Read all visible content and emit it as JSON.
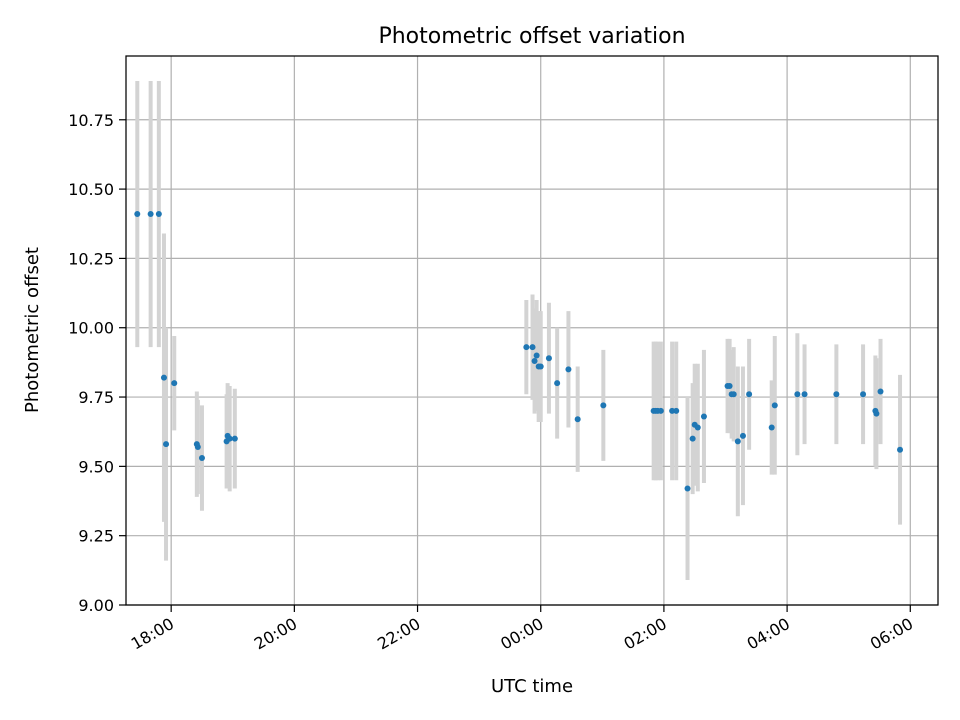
{
  "chart_data": {
    "type": "scatter",
    "title": "Photometric offset variation",
    "xlabel": "UTC time",
    "ylabel": "Photometric offset",
    "x_is_time": true,
    "x_tick_labels": [
      "18:00",
      "20:00",
      "22:00",
      "00:00",
      "02:00",
      "04:00",
      "06:00"
    ],
    "y_tick_labels": [
      "9.00",
      "9.25",
      "9.50",
      "9.75",
      "10.00",
      "10.25",
      "10.50",
      "10.75"
    ],
    "xlim": [
      "17:16",
      "06:27"
    ],
    "ylim": [
      9.0,
      10.98
    ],
    "grid": true,
    "legend": "none",
    "colors": {
      "points": "#1f77b4",
      "error_bars": "#d3d3d3",
      "grid": "#b0b0b0",
      "axes": "#000000"
    },
    "series": [
      {
        "x": [
          "17:27",
          "17:40",
          "17:48",
          "17:53",
          "17:55",
          "18:03",
          "18:25",
          "18:26",
          "18:30",
          "18:54",
          "18:55",
          "18:57",
          "19:02",
          "23:46",
          "23:52",
          "23:54",
          "23:56",
          "23:58",
          "00:00",
          "00:08",
          "00:16",
          "00:27",
          "00:36",
          "01:01",
          "01:50",
          "01:52",
          "01:54",
          "01:57",
          "02:08",
          "02:12",
          "02:23",
          "02:28",
          "02:30",
          "02:33",
          "02:39",
          "03:02",
          "03:04",
          "03:06",
          "03:08",
          "03:12",
          "03:17",
          "03:23",
          "03:45",
          "03:48",
          "04:10",
          "04:17",
          "04:48",
          "05:14",
          "05:26",
          "05:27",
          "05:31",
          "05:50"
        ],
        "y": [
          10.41,
          10.41,
          10.41,
          9.82,
          9.58,
          9.8,
          9.58,
          9.57,
          9.53,
          9.59,
          9.61,
          9.6,
          9.6,
          9.93,
          9.93,
          9.88,
          9.9,
          9.86,
          9.86,
          9.89,
          9.8,
          9.85,
          9.67,
          9.72,
          9.7,
          9.7,
          9.7,
          9.7,
          9.7,
          9.7,
          9.42,
          9.6,
          9.65,
          9.64,
          9.68,
          9.79,
          9.79,
          9.76,
          9.76,
          9.59,
          9.61,
          9.76,
          9.64,
          9.72,
          9.76,
          9.76,
          9.76,
          9.76,
          9.7,
          9.69,
          9.77,
          9.56
        ],
        "yerr": [
          0.48,
          0.48,
          0.48,
          0.52,
          0.42,
          0.17,
          0.19,
          0.17,
          0.19,
          0.17,
          0.19,
          0.19,
          0.18,
          0.17,
          0.19,
          0.19,
          0.2,
          0.2,
          0.2,
          0.2,
          0.2,
          0.21,
          0.19,
          0.2,
          0.25,
          0.25,
          0.25,
          0.25,
          0.25,
          0.25,
          0.33,
          0.2,
          0.22,
          0.23,
          0.24,
          0.17,
          0.17,
          0.16,
          0.17,
          0.27,
          0.25,
          0.2,
          0.17,
          0.25,
          0.22,
          0.18,
          0.18,
          0.18,
          0.2,
          0.2,
          0.19,
          0.27
        ]
      }
    ]
  }
}
